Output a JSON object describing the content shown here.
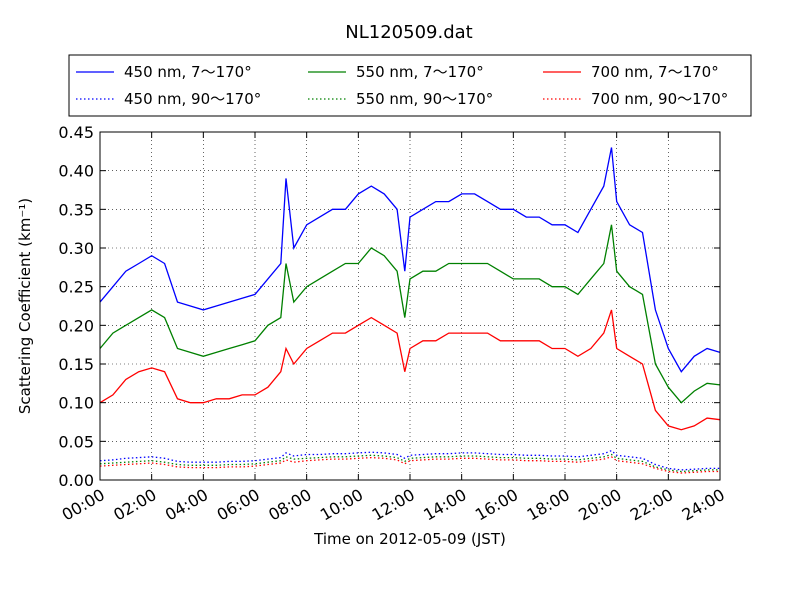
{
  "chart_data": {
    "type": "line",
    "title": "NL120509.dat",
    "xlabel": "Time on 2012-05-09 (JST)",
    "ylabel": "Scattering Coefficient (km⁻¹)",
    "xlim": [
      0,
      24
    ],
    "ylim": [
      0,
      0.45
    ],
    "grid": true,
    "legend_position": "top",
    "x_tick_labels": [
      "00:00",
      "02:00",
      "04:00",
      "06:00",
      "08:00",
      "10:00",
      "12:00",
      "14:00",
      "16:00",
      "18:00",
      "20:00",
      "22:00",
      "24:00"
    ],
    "y_tick_labels": [
      "0.00",
      "0.05",
      "0.10",
      "0.15",
      "0.20",
      "0.25",
      "0.30",
      "0.35",
      "0.40",
      "0.45"
    ],
    "x": [
      0,
      0.5,
      1,
      1.5,
      2,
      2.5,
      3,
      3.5,
      4,
      4.5,
      5,
      5.5,
      6,
      6.5,
      7,
      7.2,
      7.5,
      8,
      8.5,
      9,
      9.5,
      10,
      10.5,
      11,
      11.5,
      11.8,
      12,
      12.5,
      13,
      13.5,
      14,
      14.5,
      15,
      15.5,
      16,
      16.5,
      17,
      17.5,
      18,
      18.5,
      19,
      19.5,
      19.8,
      20,
      20.5,
      21,
      21.5,
      22,
      22.5,
      23,
      23.5,
      24
    ],
    "series": [
      {
        "name": "450 nm, 7～170°",
        "color": "#0000ff",
        "style": "solid",
        "values": [
          0.23,
          0.25,
          0.27,
          0.28,
          0.29,
          0.28,
          0.23,
          0.225,
          0.22,
          0.225,
          0.23,
          0.235,
          0.24,
          0.26,
          0.28,
          0.39,
          0.3,
          0.33,
          0.34,
          0.35,
          0.35,
          0.37,
          0.38,
          0.37,
          0.35,
          0.27,
          0.34,
          0.35,
          0.36,
          0.36,
          0.37,
          0.37,
          0.36,
          0.35,
          0.35,
          0.34,
          0.34,
          0.33,
          0.33,
          0.32,
          0.35,
          0.38,
          0.43,
          0.36,
          0.33,
          0.32,
          0.22,
          0.17,
          0.14,
          0.16,
          0.17,
          0.165
        ]
      },
      {
        "name": "550 nm, 7～170°",
        "color": "#008000",
        "style": "solid",
        "values": [
          0.17,
          0.19,
          0.2,
          0.21,
          0.22,
          0.21,
          0.17,
          0.165,
          0.16,
          0.165,
          0.17,
          0.175,
          0.18,
          0.2,
          0.21,
          0.28,
          0.23,
          0.25,
          0.26,
          0.27,
          0.28,
          0.28,
          0.3,
          0.29,
          0.27,
          0.21,
          0.26,
          0.27,
          0.27,
          0.28,
          0.28,
          0.28,
          0.28,
          0.27,
          0.26,
          0.26,
          0.26,
          0.25,
          0.25,
          0.24,
          0.26,
          0.28,
          0.33,
          0.27,
          0.25,
          0.24,
          0.15,
          0.12,
          0.1,
          0.115,
          0.125,
          0.123
        ]
      },
      {
        "name": "700 nm, 7～170°",
        "color": "#ff0000",
        "style": "solid",
        "values": [
          0.1,
          0.11,
          0.13,
          0.14,
          0.145,
          0.14,
          0.105,
          0.1,
          0.1,
          0.105,
          0.105,
          0.11,
          0.11,
          0.12,
          0.14,
          0.17,
          0.15,
          0.17,
          0.18,
          0.19,
          0.19,
          0.2,
          0.21,
          0.2,
          0.19,
          0.14,
          0.17,
          0.18,
          0.18,
          0.19,
          0.19,
          0.19,
          0.19,
          0.18,
          0.18,
          0.18,
          0.18,
          0.17,
          0.17,
          0.16,
          0.17,
          0.19,
          0.22,
          0.17,
          0.16,
          0.15,
          0.09,
          0.07,
          0.065,
          0.07,
          0.08,
          0.078
        ]
      },
      {
        "name": "450 nm, 90～170°",
        "color": "#0000ff",
        "style": "dotted",
        "values": [
          0.025,
          0.026,
          0.028,
          0.029,
          0.03,
          0.028,
          0.024,
          0.023,
          0.023,
          0.023,
          0.024,
          0.024,
          0.025,
          0.027,
          0.029,
          0.035,
          0.031,
          0.033,
          0.033,
          0.034,
          0.034,
          0.035,
          0.036,
          0.035,
          0.033,
          0.028,
          0.032,
          0.033,
          0.034,
          0.034,
          0.035,
          0.035,
          0.034,
          0.033,
          0.033,
          0.032,
          0.032,
          0.031,
          0.031,
          0.03,
          0.032,
          0.034,
          0.038,
          0.032,
          0.03,
          0.028,
          0.02,
          0.015,
          0.013,
          0.014,
          0.015,
          0.015
        ]
      },
      {
        "name": "550 nm, 90～170°",
        "color": "#008000",
        "style": "dotted",
        "values": [
          0.021,
          0.022,
          0.023,
          0.024,
          0.025,
          0.023,
          0.02,
          0.019,
          0.019,
          0.019,
          0.02,
          0.02,
          0.021,
          0.023,
          0.025,
          0.03,
          0.027,
          0.028,
          0.029,
          0.03,
          0.03,
          0.031,
          0.032,
          0.031,
          0.029,
          0.024,
          0.028,
          0.029,
          0.03,
          0.03,
          0.031,
          0.031,
          0.03,
          0.029,
          0.029,
          0.028,
          0.028,
          0.027,
          0.027,
          0.026,
          0.028,
          0.03,
          0.033,
          0.028,
          0.026,
          0.024,
          0.017,
          0.013,
          0.011,
          0.012,
          0.013,
          0.013
        ]
      },
      {
        "name": "700 nm, 90～170°",
        "color": "#ff0000",
        "style": "dotted",
        "values": [
          0.018,
          0.019,
          0.02,
          0.021,
          0.022,
          0.02,
          0.017,
          0.016,
          0.016,
          0.016,
          0.017,
          0.017,
          0.018,
          0.02,
          0.022,
          0.026,
          0.023,
          0.025,
          0.026,
          0.027,
          0.027,
          0.028,
          0.029,
          0.028,
          0.026,
          0.021,
          0.025,
          0.026,
          0.027,
          0.027,
          0.028,
          0.028,
          0.027,
          0.026,
          0.026,
          0.025,
          0.025,
          0.024,
          0.024,
          0.023,
          0.025,
          0.027,
          0.03,
          0.025,
          0.023,
          0.021,
          0.015,
          0.011,
          0.009,
          0.01,
          0.011,
          0.011
        ]
      }
    ]
  }
}
